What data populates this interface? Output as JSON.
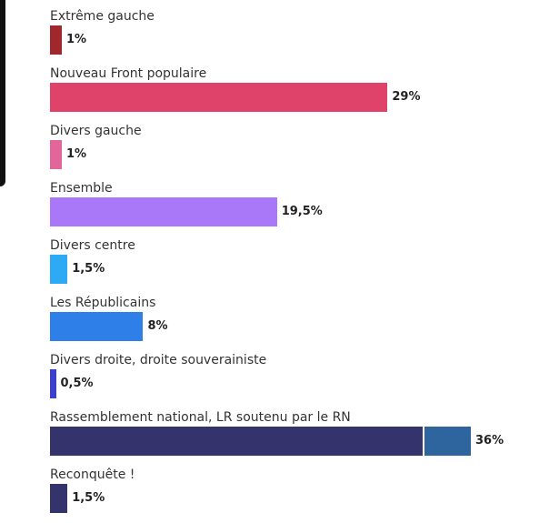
{
  "chart_data": {
    "type": "bar",
    "orientation": "horizontal",
    "xlim": [
      0,
      36
    ],
    "grid": false,
    "bars": [
      {
        "category": "Extrême gauche",
        "value": 1,
        "label": "1%",
        "segments": [
          {
            "value": 1,
            "color": "#a0282d"
          }
        ]
      },
      {
        "category": "Nouveau Front populaire",
        "value": 29,
        "label": "29%",
        "segments": [
          {
            "value": 29,
            "color": "#e0436a"
          }
        ]
      },
      {
        "category": "Divers gauche",
        "value": 1,
        "label": "1%",
        "segments": [
          {
            "value": 1,
            "color": "#e3669a"
          }
        ]
      },
      {
        "category": "Ensemble",
        "value": 19.5,
        "label": "19,5%",
        "segments": [
          {
            "value": 19.5,
            "color": "#a978f8"
          }
        ]
      },
      {
        "category": "Divers centre",
        "value": 1.5,
        "label": "1,5%",
        "segments": [
          {
            "value": 1.5,
            "color": "#2eaaf5"
          }
        ]
      },
      {
        "category": "Les Républicains",
        "value": 8,
        "label": "8%",
        "segments": [
          {
            "value": 8,
            "color": "#2f7fe8"
          }
        ]
      },
      {
        "category": "Divers droite, droite souverainiste",
        "value": 0.5,
        "label": "0,5%",
        "segments": [
          {
            "value": 0.5,
            "color": "#3c3fce"
          }
        ]
      },
      {
        "category": "Rassemblement national, LR soutenu par le RN",
        "value": 36,
        "label": "36%",
        "segments": [
          {
            "value": 32,
            "color": "#35336b"
          },
          {
            "value": 4,
            "color": "#2e659f"
          }
        ]
      },
      {
        "category": "Reconquête !",
        "value": 1.5,
        "label": "1,5%",
        "segments": [
          {
            "value": 1.5,
            "color": "#35336b"
          }
        ]
      }
    ]
  }
}
